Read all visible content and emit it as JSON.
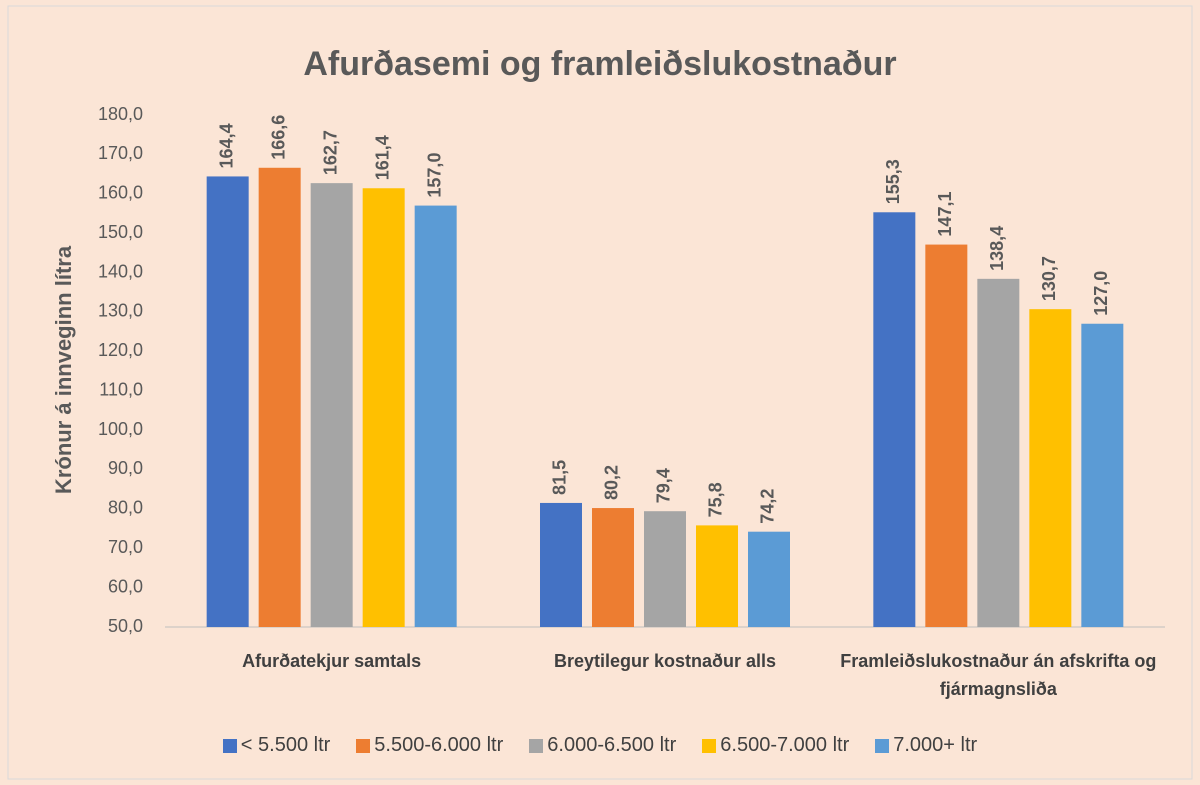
{
  "chart_data": {
    "type": "bar",
    "title": "Afurðasemi og framleiðslukostnaður",
    "y_label": "Krónur á innveginn lítra",
    "categories": [
      "Afurðatekjur samtals",
      "Breytilegur kostnaður alls",
      "Framleiðslukostnaður án afskrifta og fjármagnsliða"
    ],
    "series": [
      {
        "name": "< 5.500 ltr",
        "color": "#4472c4",
        "values": [
          164.4,
          81.5,
          155.3
        ],
        "value_labels": [
          "164,4",
          "81,5",
          "155,3"
        ]
      },
      {
        "name": "5.500-6.000 ltr",
        "color": "#ed7d31",
        "values": [
          166.6,
          80.2,
          147.1
        ],
        "value_labels": [
          "166,6",
          "80,2",
          "147,1"
        ]
      },
      {
        "name": "6.000-6.500 ltr",
        "color": "#a5a5a5",
        "values": [
          162.7,
          79.4,
          138.4
        ],
        "value_labels": [
          "162,7",
          "79,4",
          "138,4"
        ]
      },
      {
        "name": "6.500-7.000 ltr",
        "color": "#ffc000",
        "values": [
          161.4,
          75.8,
          130.7
        ],
        "value_labels": [
          "161,4",
          "75,8",
          "130,7"
        ]
      },
      {
        "name": "7.000+ ltr",
        "color": "#5b9bd5",
        "values": [
          157.0,
          74.2,
          127.0
        ],
        "value_labels": [
          "157,0",
          "74,2",
          "127,0"
        ]
      }
    ],
    "ylim": [
      50,
      180
    ],
    "yticks": [
      {
        "value": 50,
        "label": "50,0"
      },
      {
        "value": 60,
        "label": "60,0"
      },
      {
        "value": 70,
        "label": "70,0"
      },
      {
        "value": 80,
        "label": "80,0"
      },
      {
        "value": 90,
        "label": "90,0"
      },
      {
        "value": 100,
        "label": "100,0"
      },
      {
        "value": 110,
        "label": "110,0"
      },
      {
        "value": 120,
        "label": "120,0"
      },
      {
        "value": 130,
        "label": "130,0"
      },
      {
        "value": 140,
        "label": "140,0"
      },
      {
        "value": 150,
        "label": "150,0"
      },
      {
        "value": 160,
        "label": "160,0"
      },
      {
        "value": 170,
        "label": "170,0"
      },
      {
        "value": 180,
        "label": "180,0"
      }
    ],
    "grid": false,
    "legend": "bottom"
  }
}
